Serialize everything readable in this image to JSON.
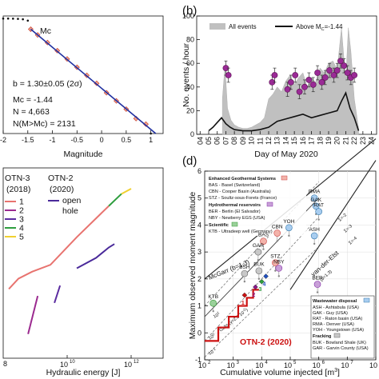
{
  "chart_data": [
    {
      "panel": "a",
      "type": "scatter",
      "xlabel": "Magnitude",
      "x_ticks": [
        "-2",
        "-1.5",
        "-1",
        "-0.5",
        "0",
        "0.5",
        "1"
      ],
      "xlim": [
        -2,
        1.25
      ],
      "ylog": true,
      "annotations": {
        "mc": "Mc",
        "b": "b = 1.30±0.05 (2σ)",
        "mc_value": "Mc = -1.44",
        "n": "N = 4,663",
        "n_above": "N(M>Mc) = 2131"
      },
      "series": [
        {
          "style": "black dotted",
          "x": [
            -2.0,
            -1.9,
            -1.8,
            -1.7,
            -1.6,
            -1.5,
            -1.44,
            -1.3,
            -1.1,
            -0.9,
            -0.7,
            -0.5,
            -0.3,
            -0.1,
            0.1,
            0.3,
            0.5,
            0.7,
            0.9,
            1.0
          ],
          "y": [
            4663,
            4650,
            4620,
            4560,
            4420,
            4000,
            2131,
            1400,
            800,
            440,
            240,
            130,
            72,
            40,
            20,
            11,
            6,
            3,
            2,
            1
          ]
        },
        {
          "style": "red diamonds",
          "x": [
            -1.44,
            -1.3,
            -1.1,
            -0.9,
            -0.7,
            -0.5,
            -0.3,
            -0.1,
            0.1,
            0.3,
            0.5,
            0.7,
            0.9
          ],
          "y": [
            2131,
            1400,
            800,
            440,
            240,
            130,
            72,
            40,
            20,
            11,
            6,
            3,
            2
          ]
        },
        {
          "style": "blue fit",
          "x": [
            -1.44,
            1.1
          ],
          "y": [
            2131,
            1
          ]
        }
      ]
    },
    {
      "panel": "b",
      "type": "bar",
      "title_letter": "(b)",
      "xlabel": "Day of May 2020",
      "ylabel": "No. events / hour",
      "x_ticks": [
        "04",
        "05",
        "06",
        "07",
        "08",
        "09",
        "10",
        "11",
        "12",
        "13",
        "14",
        "15",
        "16",
        "17",
        "18",
        "19",
        "20",
        "21",
        "22",
        "23",
        "24"
      ],
      "y_ticks": [
        "0",
        "20",
        "40",
        "60",
        "80",
        "100"
      ],
      "ylim": [
        0,
        100
      ],
      "legend": {
        "all": "All events",
        "above": "Above M",
        "above_sub": "C",
        "above_value": "=-1.44"
      },
      "all_events": {
        "x": [
          6.6,
          6.9,
          7.2,
          7.6,
          8.0,
          8.5,
          9.0,
          9.5,
          10.0,
          10.5,
          11.0,
          11.5,
          12.0,
          12.5,
          13.0,
          13.5,
          14.0,
          14.5,
          15.0,
          15.5,
          16.0,
          16.5,
          17.0,
          17.5,
          18.0,
          18.5,
          19.0,
          19.5,
          20.0,
          20.5,
          21.0,
          21.3,
          21.6,
          22.0,
          22.5
        ],
        "y": [
          30,
          58,
          22,
          12,
          8,
          6,
          5,
          5,
          6,
          8,
          10,
          14,
          30,
          34,
          40,
          36,
          45,
          50,
          42,
          48,
          52,
          40,
          48,
          44,
          56,
          52,
          60,
          62,
          55,
          90,
          45,
          90,
          70,
          30,
          5
        ]
      },
      "above_mc": {
        "x": [
          5.0,
          5.5,
          6.0,
          6.5,
          7.0,
          7.5,
          8.0,
          9.0,
          10.0,
          11.0,
          12.0,
          13.0,
          14.0,
          15.0,
          16.0,
          17.0,
          18.0,
          19.0,
          20.0,
          20.5,
          21.0,
          21.5,
          22.0,
          22.5
        ],
        "y": [
          3,
          6,
          10,
          14,
          9,
          6,
          4,
          3,
          3,
          4,
          6,
          11,
          13,
          15,
          17,
          14,
          16,
          18,
          20,
          28,
          35,
          22,
          14,
          3
        ]
      },
      "circles": {
        "x": [
          7.0,
          7.3,
          12.4,
          12.7,
          14.2,
          14.6,
          15.1,
          15.6,
          16.2,
          16.7,
          17.2,
          17.7,
          18.2,
          18.6,
          19.1,
          19.6,
          20.0,
          20.4,
          20.8,
          21.2,
          21.6,
          22.0
        ],
        "y": [
          56,
          50,
          44,
          50,
          38,
          44,
          50,
          36,
          40,
          46,
          42,
          52,
          44,
          48,
          54,
          50,
          54,
          62,
          58,
          52,
          48,
          50
        ],
        "err": [
          6,
          6,
          6,
          6,
          6,
          6,
          6,
          6,
          6,
          6,
          6,
          6,
          6,
          6,
          6,
          6,
          6,
          6,
          6,
          6,
          6,
          6
        ]
      }
    },
    {
      "panel": "c",
      "type": "line",
      "xlabel": "Hydraulic energy [J]",
      "x_ticks": [
        "10",
        "10"
      ],
      "x_tick_exp": [
        "10",
        "12"
      ],
      "x_left_fragment": "8",
      "xlog": true,
      "xlim": [
        100000000.0,
        10000000000000.0
      ],
      "legend": {
        "otn3": "OTN-3",
        "otn3_year": "(2018)",
        "otn2": "OTN-2",
        "otn2_year": "(2020)",
        "stages": [
          "1",
          "2",
          "3",
          "4",
          "5"
        ],
        "open_hole": "open",
        "open_hole2": "hole"
      },
      "series": [
        {
          "name": "1",
          "color": "#e8736f",
          "x": [
            150000000.0,
            300000000.0,
            800000000.0,
            3000000000.0,
            20000000000.0,
            200000000000.0
          ],
          "y": [
            -0.2,
            0.1,
            0.3,
            0.5,
            1.3,
            2.2
          ]
        },
        {
          "name": "2",
          "color": "#9b2a8f",
          "x": [
            600000000.0,
            1200000000.0
          ],
          "y": [
            -1.5,
            -0.4
          ]
        },
        {
          "name": "3",
          "color": "#5b2ca0",
          "x": [
            4000000000.0,
            6000000000.0
          ],
          "y": [
            -0.6,
            -0.1
          ]
        },
        {
          "name": "4",
          "color": "#2e9e3e",
          "x": [
            200000000000.0,
            500000000000.0
          ],
          "y": [
            2.2,
            2.55
          ]
        },
        {
          "name": "5",
          "color": "#f0d030",
          "x": [
            500000000000.0,
            1000000000000.0
          ],
          "y": [
            2.55,
            2.7
          ]
        },
        {
          "name": "open hole",
          "color": "#4a2a9a",
          "x": [
            20000000000.0,
            80000000000.0,
            200000000000.0,
            300000000000.0
          ],
          "y": [
            0.4,
            0.7,
            1.0,
            1.1
          ]
        }
      ]
    },
    {
      "panel": "d",
      "type": "scatter",
      "title_letter": "(d)",
      "xlabel": "Cumulative volume injected [m",
      "xlabel_sup": "3",
      "xlabel_end": "]",
      "ylabel": "Maximum observed moment magnitude",
      "xlog": true,
      "xlim": [
        100,
        100000000.0
      ],
      "ylim": [
        -1,
        6
      ],
      "y_ticks": [
        "-1",
        "0",
        "1",
        "2",
        "3",
        "4",
        "5",
        "6"
      ],
      "x_ticks": [
        "10",
        "10",
        "10",
        "10",
        "10",
        "10",
        "10"
      ],
      "x_tick_exp": [
        "2",
        "3",
        "4",
        "5",
        "6",
        "7",
        "8"
      ],
      "lines": {
        "mcgarr": "McGarr (b=1.3)",
        "vdelft": "van-der-Elst",
        "vdelft2": "(b=1.3)",
        "galis": "Galis (γ=2.0 10",
        "galis_exp": "-2",
        "galis_end": ")",
        "g1": "10",
        "g1_exp": "1",
        "g2": "10",
        "g2_exp": "0",
        "g3": "10",
        "g3_exp": "-1",
        "s1": "Σ=-2",
        "s2": "Σ=-3",
        "s3": "Σ=-4"
      },
      "legend": {
        "egs": "Enhanced Geothermal Systems",
        "egs_items": [
          "BAS - Basel (Switzerland)",
          "CBN - Cooper Basin (Australia)",
          "STZ - Soultz-sous-Forets (France)"
        ],
        "hydro": "Hydrothermal reservoirs",
        "hydro_items": [
          "BER - Berlin (El Salvador)",
          "NBY - Newberry EGS (USA)"
        ],
        "sci": "Scientific",
        "sci_items": [
          "KTB - Ultradeep well (Germany)"
        ],
        "ww": "Wastewater disposal",
        "ww_items": [
          "ASH - Ashtabula (USA)",
          "GAK - Guy (USA)",
          "RAT - Raton basin (USA)",
          "RMA - Denver (USA)",
          "YOH - Youngstown (USA)"
        ],
        "frack": "Fracking",
        "frack_items": [
          "BUK - Bowland Shale (UK)",
          "GAR - Garvin County (USA)"
        ]
      },
      "points": [
        {
          "label": "KTB",
          "category": "scientific",
          "x": 200,
          "y": 1.1
        },
        {
          "label": "BAS",
          "category": "egs",
          "x": 11500,
          "y": 3.4
        },
        {
          "label": "CBN",
          "category": "egs",
          "x": 35000,
          "y": 3.7
        },
        {
          "label": "STZ",
          "category": "egs",
          "x": 30000,
          "y": 2.6
        },
        {
          "label": "GAR",
          "category": "fracking",
          "x": 7500,
          "y": 3.0
        },
        {
          "label": "BSH",
          "category": "fracking",
          "x": 2500,
          "y": 2.2
        },
        {
          "label": "BUK",
          "category": "fracking",
          "x": 8000,
          "y": 2.3
        },
        {
          "label": "NBY",
          "category": "hydrothermal",
          "x": 40000,
          "y": 2.4
        },
        {
          "label": "BER",
          "category": "hydrothermal",
          "x": 900000,
          "y": 1.8
        },
        {
          "label": "YOH",
          "category": "wastewater",
          "x": 90000,
          "y": 3.9
        },
        {
          "label": "ASH",
          "category": "wastewater",
          "x": 700000,
          "y": 3.6
        },
        {
          "label": "RMA",
          "category": "wastewater",
          "x": 700000,
          "y": 5.0
        },
        {
          "label": "GAK",
          "category": "wastewater",
          "x": 800000,
          "y": 4.7
        },
        {
          "label": "RAT",
          "category": "wastewater",
          "x": 1000000,
          "y": 4.5
        }
      ],
      "otn": {
        "label": "OTN-2 (2020)",
        "stage_labels": [
          "1",
          "2",
          "3",
          "4"
        ],
        "color": "#cc1111",
        "x": [
          100,
          300,
          300,
          700,
          700,
          1500,
          1500,
          3000,
          3000,
          5000,
          5000,
          8000
        ],
        "y": [
          -0.3,
          -0.3,
          0.2,
          0.2,
          0.6,
          0.6,
          1.0,
          1.0,
          1.3,
          1.3,
          1.6,
          1.6
        ]
      }
    }
  ]
}
